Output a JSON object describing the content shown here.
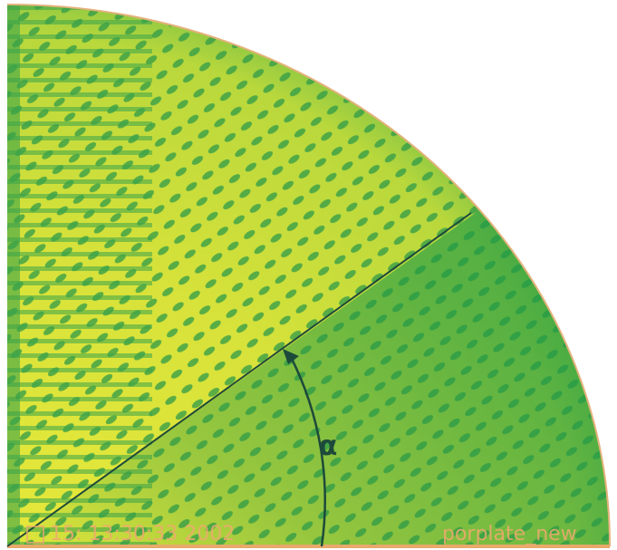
{
  "image": {
    "angle_label": "α",
    "timestamp": "15: 13:30:33 2002",
    "filename": "porplate_new"
  }
}
